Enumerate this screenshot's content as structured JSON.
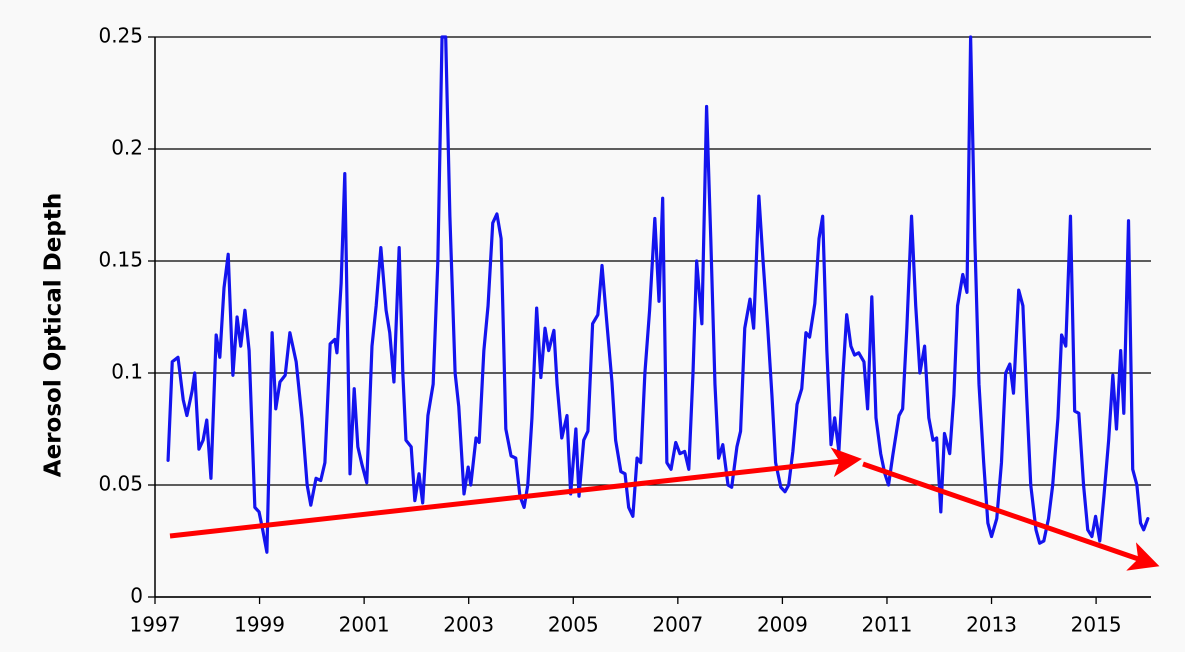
{
  "chart_data": {
    "type": "line",
    "y_label": "Aerosol Optical Depth",
    "color": "#1414ee",
    "xlim": [
      1997,
      2016.05
    ],
    "ylim": [
      0,
      0.25
    ],
    "xticks": [
      1997,
      1999,
      2001,
      2003,
      2005,
      2007,
      2009,
      2011,
      2013,
      2015
    ],
    "yticks": [
      0,
      0.05,
      0.1,
      0.15,
      0.2,
      0.25
    ],
    "grid": true,
    "x": [
      1997.25,
      1997.33,
      1997.44,
      1997.54,
      1997.61,
      1997.71,
      1997.76,
      1997.84,
      1997.92,
      1997.99,
      1998.07,
      1998.17,
      1998.24,
      1998.32,
      1998.4,
      1998.49,
      1998.57,
      1998.64,
      1998.72,
      1998.8,
      1998.91,
      1998.99,
      1999.06,
      1999.14,
      1999.24,
      1999.31,
      1999.39,
      1999.49,
      1999.58,
      1999.7,
      1999.81,
      1999.91,
      1999.98,
      2000.08,
      2000.17,
      2000.25,
      2000.35,
      2000.44,
      2000.48,
      2000.56,
      2000.63,
      2000.73,
      2000.81,
      2000.88,
      2000.96,
      2001.05,
      2001.15,
      2001.23,
      2001.32,
      2001.42,
      2001.49,
      2001.57,
      2001.67,
      2001.74,
      2001.8,
      2001.9,
      2001.97,
      2002.05,
      2002.12,
      2002.22,
      2002.32,
      2002.41,
      2002.49,
      2002.56,
      2002.64,
      2002.74,
      2002.81,
      2002.91,
      2002.99,
      2003.04,
      2003.14,
      2003.2,
      2003.29,
      2003.37,
      2003.46,
      2003.54,
      2003.62,
      2003.71,
      2003.81,
      2003.9,
      2003.98,
      2004.06,
      2004.13,
      2004.21,
      2004.3,
      2004.38,
      2004.46,
      2004.53,
      2004.63,
      2004.69,
      2004.78,
      2004.88,
      2004.95,
      2005.05,
      2005.11,
      2005.2,
      2005.28,
      2005.37,
      2005.47,
      2005.55,
      2005.64,
      2005.74,
      2005.81,
      2005.91,
      2005.99,
      2006.06,
      2006.14,
      2006.22,
      2006.29,
      2006.37,
      2006.46,
      2006.56,
      2006.64,
      2006.71,
      2006.79,
      2006.87,
      2006.96,
      2007.04,
      2007.13,
      2007.21,
      2007.29,
      2007.36,
      2007.46,
      2007.55,
      2007.63,
      2007.71,
      2007.78,
      2007.86,
      2007.96,
      2008.03,
      2008.13,
      2008.2,
      2008.28,
      2008.38,
      2008.45,
      2008.55,
      2008.63,
      2008.72,
      2008.8,
      2008.87,
      2008.97,
      2009.05,
      2009.12,
      2009.2,
      2009.28,
      2009.37,
      2009.45,
      2009.52,
      2009.62,
      2009.7,
      2009.77,
      2009.85,
      2009.93,
      2010.0,
      2010.08,
      2010.16,
      2010.23,
      2010.31,
      2010.38,
      2010.46,
      2010.56,
      2010.63,
      2010.71,
      2010.79,
      2010.88,
      2010.96,
      2011.03,
      2011.11,
      2011.23,
      2011.3,
      2011.38,
      2011.47,
      2011.55,
      2011.63,
      2011.72,
      2011.8,
      2011.88,
      2011.95,
      2012.03,
      2012.1,
      2012.2,
      2012.28,
      2012.35,
      2012.45,
      2012.53,
      2012.6,
      2012.68,
      2012.76,
      2012.85,
      2012.93,
      2013.0,
      2013.1,
      2013.19,
      2013.27,
      2013.35,
      2013.42,
      2013.52,
      2013.6,
      2013.67,
      2013.75,
      2013.85,
      2013.92,
      2014.0,
      2014.09,
      2014.17,
      2014.27,
      2014.34,
      2014.42,
      2014.51,
      2014.59,
      2014.67,
      2014.76,
      2014.84,
      2014.92,
      2014.99,
      2015.07,
      2015.15,
      2015.24,
      2015.32,
      2015.39,
      2015.47,
      2015.53,
      2015.62,
      2015.7,
      2015.78,
      2015.85,
      2015.91,
      2015.99
    ],
    "values": [
      0.061,
      0.105,
      0.107,
      0.088,
      0.081,
      0.092,
      0.1,
      0.066,
      0.07,
      0.079,
      0.053,
      0.117,
      0.107,
      0.138,
      0.153,
      0.099,
      0.125,
      0.112,
      0.128,
      0.11,
      0.04,
      0.038,
      0.03,
      0.02,
      0.118,
      0.084,
      0.096,
      0.099,
      0.118,
      0.105,
      0.08,
      0.05,
      0.041,
      0.053,
      0.052,
      0.06,
      0.113,
      0.115,
      0.109,
      0.14,
      0.189,
      0.055,
      0.093,
      0.067,
      0.059,
      0.051,
      0.112,
      0.13,
      0.156,
      0.128,
      0.118,
      0.096,
      0.156,
      0.1,
      0.07,
      0.067,
      0.043,
      0.055,
      0.042,
      0.081,
      0.095,
      0.15,
      0.25,
      0.25,
      0.17,
      0.1,
      0.085,
      0.046,
      0.058,
      0.05,
      0.071,
      0.069,
      0.11,
      0.13,
      0.167,
      0.171,
      0.16,
      0.075,
      0.063,
      0.062,
      0.045,
      0.04,
      0.05,
      0.08,
      0.129,
      0.098,
      0.12,
      0.11,
      0.119,
      0.095,
      0.071,
      0.081,
      0.046,
      0.075,
      0.045,
      0.07,
      0.074,
      0.122,
      0.126,
      0.148,
      0.123,
      0.096,
      0.07,
      0.056,
      0.055,
      0.04,
      0.036,
      0.062,
      0.06,
      0.1,
      0.128,
      0.169,
      0.132,
      0.178,
      0.06,
      0.057,
      0.069,
      0.064,
      0.065,
      0.057,
      0.1,
      0.15,
      0.122,
      0.219,
      0.16,
      0.095,
      0.062,
      0.068,
      0.05,
      0.049,
      0.067,
      0.074,
      0.12,
      0.133,
      0.12,
      0.179,
      0.15,
      0.12,
      0.09,
      0.06,
      0.049,
      0.047,
      0.05,
      0.065,
      0.086,
      0.093,
      0.118,
      0.116,
      0.131,
      0.16,
      0.17,
      0.11,
      0.068,
      0.08,
      0.065,
      0.1,
      0.126,
      0.112,
      0.108,
      0.109,
      0.105,
      0.084,
      0.134,
      0.08,
      0.064,
      0.055,
      0.05,
      0.063,
      0.081,
      0.084,
      0.12,
      0.17,
      0.13,
      0.1,
      0.112,
      0.08,
      0.07,
      0.071,
      0.038,
      0.073,
      0.064,
      0.09,
      0.13,
      0.144,
      0.136,
      0.25,
      0.16,
      0.095,
      0.06,
      0.033,
      0.027,
      0.035,
      0.06,
      0.1,
      0.104,
      0.091,
      0.137,
      0.13,
      0.09,
      0.05,
      0.03,
      0.024,
      0.025,
      0.035,
      0.05,
      0.08,
      0.117,
      0.112,
      0.17,
      0.083,
      0.082,
      0.05,
      0.03,
      0.027,
      0.036,
      0.025,
      0.045,
      0.07,
      0.099,
      0.075,
      0.11,
      0.082,
      0.168,
      0.057,
      0.05,
      0.033,
      0.03,
      0.035
    ]
  }
}
